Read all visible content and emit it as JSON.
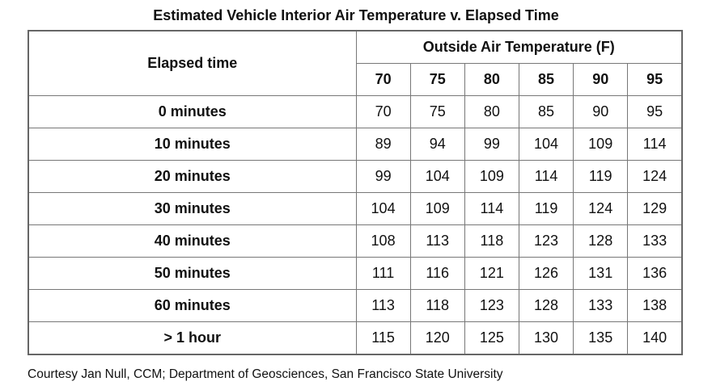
{
  "title": "Estimated Vehicle Interior Air Temperature v. Elapsed Time",
  "table": {
    "row_header": "Elapsed time",
    "column_group": "Outside Air Temperature (F)",
    "columns": [
      70,
      75,
      80,
      85,
      90,
      95
    ],
    "rows": [
      {
        "label": "0 minutes",
        "values": [
          70,
          75,
          80,
          85,
          90,
          95
        ]
      },
      {
        "label": "10 minutes",
        "values": [
          89,
          94,
          99,
          104,
          109,
          114
        ]
      },
      {
        "label": "20 minutes",
        "values": [
          99,
          104,
          109,
          114,
          119,
          124
        ]
      },
      {
        "label": "30 minutes",
        "values": [
          104,
          109,
          114,
          119,
          124,
          129
        ]
      },
      {
        "label": "40 minutes",
        "values": [
          108,
          113,
          118,
          123,
          128,
          133
        ]
      },
      {
        "label": "50 minutes",
        "values": [
          111,
          116,
          121,
          126,
          131,
          136
        ]
      },
      {
        "label": "60 minutes",
        "values": [
          113,
          118,
          123,
          128,
          133,
          138
        ]
      },
      {
        "label": "> 1 hour",
        "values": [
          115,
          120,
          125,
          130,
          135,
          140
        ]
      }
    ]
  },
  "footer": "Courtesy Jan Null, CCM; Department of Geosciences, San Francisco State University"
}
